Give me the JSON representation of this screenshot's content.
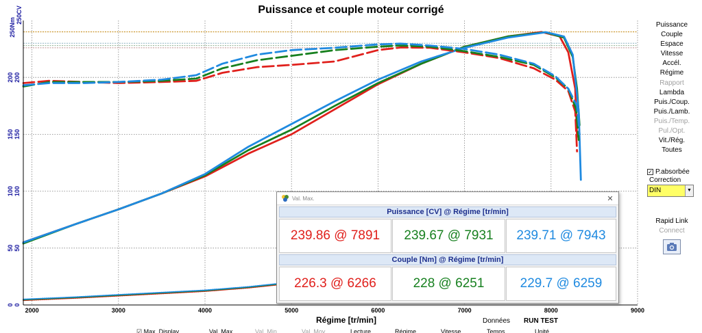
{
  "chart_data": {
    "type": "line",
    "title": "Puissance et couple moteur corrigé",
    "xlabel": "Régime [tr/min]",
    "ylabel_top": "250Nm",
    "ylabel_bottom": "250CV",
    "xlim": [
      1900,
      9000
    ],
    "ylim": [
      0,
      250
    ],
    "x_ticks": [
      2000,
      3000,
      4000,
      5000,
      6000,
      7000,
      8000,
      9000
    ],
    "y_ticks": [
      0,
      50,
      100,
      150,
      200
    ],
    "grid": true,
    "reference_lines": [
      {
        "value": 240,
        "color": "#c08000"
      },
      {
        "value": 230,
        "color": "#8ab0c0"
      },
      {
        "value": 228,
        "color": "#90b090"
      },
      {
        "value": 226,
        "color": "#c09090"
      }
    ],
    "series": [
      {
        "color": "#e0201c",
        "style": "solid",
        "x": [
          1900,
          2500,
          3000,
          3500,
          4000,
          4500,
          5000,
          5500,
          6000,
          6500,
          7000,
          7500,
          7891,
          8100,
          8200,
          8280,
          8300
        ],
        "y": [
          55,
          71,
          84,
          98,
          113,
          133,
          150,
          172,
          194,
          212,
          227,
          236,
          239.9,
          236,
          222,
          190,
          148
        ]
      },
      {
        "color": "#17801f",
        "style": "solid",
        "x": [
          1900,
          2500,
          3000,
          3500,
          4000,
          4500,
          5000,
          5500,
          6000,
          6500,
          7000,
          7500,
          7931,
          8150,
          8250,
          8300,
          8330
        ],
        "y": [
          54,
          71,
          84,
          98,
          114,
          136,
          154,
          175,
          195,
          212,
          227,
          236,
          239.7,
          235,
          218,
          190,
          158
        ]
      },
      {
        "color": "#1f8ae0",
        "style": "solid",
        "x": [
          1900,
          2500,
          3000,
          3500,
          4000,
          4500,
          5000,
          5500,
          6000,
          6500,
          7000,
          7500,
          7943,
          8150,
          8250,
          8320,
          8345
        ],
        "y": [
          55,
          71,
          84,
          98,
          115,
          139,
          159,
          179,
          198,
          214,
          226,
          235,
          239.7,
          236,
          220,
          170,
          110
        ]
      },
      {
        "color": "#e0201c",
        "style": "dashed",
        "x": [
          1900,
          2200,
          2600,
          3000,
          3500,
          3900,
          4200,
          4600,
          5000,
          5500,
          6000,
          6266,
          6600,
          7000,
          7400,
          7800,
          8050,
          8200,
          8280,
          8300
        ],
        "y": [
          195,
          197,
          196,
          195,
          196,
          197,
          204,
          209,
          211,
          214,
          224,
          226.3,
          226,
          222,
          217,
          208,
          198,
          188,
          170,
          135
        ]
      },
      {
        "color": "#17801f",
        "style": "dashed",
        "x": [
          1900,
          2200,
          2600,
          3000,
          3500,
          3900,
          4200,
          4600,
          5000,
          5500,
          6000,
          6251,
          6600,
          7000,
          7400,
          7800,
          8050,
          8200,
          8290,
          8320
        ],
        "y": [
          192,
          196,
          196,
          196,
          197,
          199,
          208,
          215,
          219,
          224,
          227,
          228,
          227,
          223,
          218,
          211,
          200,
          190,
          172,
          145
        ]
      },
      {
        "color": "#1f8ae0",
        "style": "dashed",
        "x": [
          1900,
          2200,
          2600,
          3000,
          3500,
          3900,
          4200,
          4600,
          5000,
          5500,
          6000,
          6259,
          6600,
          7000,
          7400,
          7800,
          8050,
          8200,
          8300,
          8330
        ],
        "y": [
          193,
          195,
          195,
          196,
          198,
          202,
          212,
          220,
          224,
          226,
          229,
          229.7,
          228,
          225,
          220,
          212,
          201,
          190,
          175,
          150
        ]
      },
      {
        "color": "#e0201c",
        "style": "dotted",
        "x": [
          1900,
          2500,
          3000,
          3500,
          4000,
          4500,
          5000
        ],
        "y": [
          4,
          6,
          8,
          10,
          12,
          15,
          19
        ]
      },
      {
        "color": "#17801f",
        "style": "dotted",
        "x": [
          1900,
          2500,
          3000,
          3500,
          4000,
          4500,
          5000
        ],
        "y": [
          4.5,
          6.5,
          8.5,
          10.5,
          12.5,
          15.5,
          19.5
        ]
      },
      {
        "color": "#1f8ae0",
        "style": "dotted",
        "x": [
          1900,
          2500,
          3000,
          3500,
          4000,
          4500,
          5000
        ],
        "y": [
          5,
          7,
          9,
          11,
          13,
          16,
          20
        ]
      }
    ]
  },
  "menu": {
    "items": [
      {
        "label": "Puissance",
        "enabled": true
      },
      {
        "label": "Couple",
        "enabled": true
      },
      {
        "label": "Espace",
        "enabled": true
      },
      {
        "label": "Vitesse",
        "enabled": true
      },
      {
        "label": "Accél.",
        "enabled": true
      },
      {
        "label": "Régime",
        "enabled": true
      },
      {
        "label": "Rapport",
        "enabled": false
      },
      {
        "label": "Lambda",
        "enabled": true
      },
      {
        "label": "Puis./Coup.",
        "enabled": true
      },
      {
        "label": "Puis./Lamb.",
        "enabled": true
      },
      {
        "label": "Puis./Temp.",
        "enabled": false
      },
      {
        "label": "Pul./Opt.",
        "enabled": false
      },
      {
        "label": "Vit./Rég.",
        "enabled": true
      },
      {
        "label": "Toutes",
        "enabled": true
      }
    ],
    "p_absorbee_label": "P.absorbée",
    "p_absorbee_checked": true,
    "correction_label": "Correction",
    "correction_value": "DIN",
    "rapid_link_label": "Rapid Link",
    "connect_label": "Connect"
  },
  "dialog": {
    "title": "Val. Max.",
    "close": "✕",
    "power_header": "Puissance  [CV] @ Régime [tr/min]",
    "torque_header": "Couple  [Nm] @ Régime [tr/min]",
    "power": [
      "239.86 @ 7891",
      "239.67 @ 7931",
      "239.71 @ 7943"
    ],
    "torque": [
      "226.3 @ 6266",
      "228 @ 6251",
      "229.7 @ 6259"
    ]
  },
  "bottom": {
    "donnees": "Données",
    "run_test": "RUN TEST",
    "cut_labels": [
      {
        "text": "Max. Display",
        "dim": false
      },
      {
        "text": "Val. Max.",
        "dim": false
      },
      {
        "text": "Val. Min.",
        "dim": true
      },
      {
        "text": "Val. Moy.",
        "dim": true
      },
      {
        "text": "Lecture",
        "dim": false
      },
      {
        "text": "Régime",
        "dim": false
      },
      {
        "text": "Vitesse",
        "dim": false
      },
      {
        "text": "Temps",
        "dim": false
      },
      {
        "text": "Unité",
        "dim": false
      }
    ]
  },
  "colors": {
    "red": "#e0201c",
    "green": "#17801f",
    "blue": "#1f8ae0",
    "axis_label": "#1a1aa0"
  }
}
